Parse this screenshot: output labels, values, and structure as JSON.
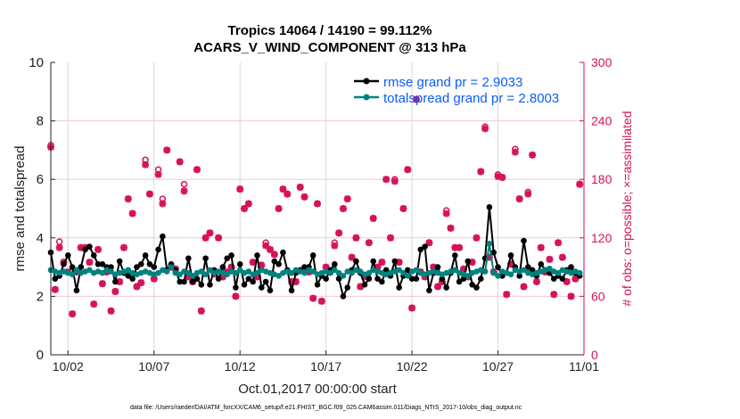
{
  "chart_data": {
    "type": "line",
    "title_line1": "Tropics 14064 / 14190 = 99.112%",
    "title_line2": "ACARS_V_WIND_COMPONENT @ 313 hPa",
    "ylabel": "rmse and totalspread",
    "y2label": "# of obs: o=possible; ×=assimilated",
    "xlabel": "Oct.01,2017 00:00:00 start",
    "footnote": "data file: /Users/raeder/DAI/ATM_forcXX/CAM6_setup/f.e21.FHIST_BGC.f09_025.CAM6assim.011/Diags_NTrS_2017-10/obs_diag_output.nc",
    "ylim": [
      0,
      10
    ],
    "y2lim": [
      0,
      300
    ],
    "xlim_days": [
      0,
      31
    ],
    "yticks": [
      "0",
      "2",
      "4",
      "6",
      "8",
      "10"
    ],
    "y2ticks": [
      "0",
      "60",
      "120",
      "180",
      "240",
      "300"
    ],
    "xticks": [
      {
        "day": 1,
        "label": "10/02"
      },
      {
        "day": 6,
        "label": "10/07"
      },
      {
        "day": 11,
        "label": "10/12"
      },
      {
        "day": 16,
        "label": "10/17"
      },
      {
        "day": 21,
        "label": "10/22"
      },
      {
        "day": 26,
        "label": "10/27"
      },
      {
        "day": 31,
        "label": "11/01"
      }
    ],
    "step_days": 0.25,
    "colors": {
      "rmse": "#000000",
      "spread": "#00827f",
      "obs": "#d6125a",
      "legend_text": "#0a5cff",
      "grid_v": "#d9d9d9",
      "grid_h": "#f0c8d6"
    },
    "series": [
      {
        "name": "rmse grand pr = 2.9033",
        "values": [
          3.5,
          2.6,
          2.7,
          3.1,
          3.4,
          3.0,
          2.2,
          3.0,
          3.6,
          3.7,
          3.4,
          3.1,
          3.1,
          3.0,
          3.0,
          2.5,
          3.2,
          2.8,
          2.7,
          2.6,
          3.0,
          3.1,
          3.4,
          3.1,
          3.0,
          3.6,
          4.05,
          2.9,
          3.1,
          2.9,
          2.5,
          2.5,
          3.3,
          2.5,
          2.6,
          2.4,
          3.3,
          2.4,
          2.9,
          2.6,
          3.0,
          3.3,
          3.4,
          2.3,
          3.1,
          2.4,
          2.6,
          2.5,
          3.4,
          2.3,
          2.5,
          2.2,
          3.2,
          3.1,
          3.5,
          2.9,
          2.2,
          2.8,
          2.9,
          3.0,
          3.0,
          3.4,
          2.4,
          2.7,
          2.6,
          2.9,
          3.1,
          2.6,
          2.0,
          2.3,
          2.9,
          3.2,
          2.8,
          2.4,
          2.6,
          3.2,
          2.6,
          2.5,
          2.9,
          2.7,
          3.2,
          2.3,
          2.7,
          2.9,
          2.6,
          2.6,
          3.6,
          3.7,
          2.2,
          2.8,
          3.0,
          2.6,
          2.3,
          2.8,
          3.4,
          2.5,
          2.6,
          3.2,
          2.4,
          2.3,
          2.6,
          3.3,
          5.05,
          3.5,
          3.0,
          2.7,
          2.8,
          3.4,
          3.0,
          2.7,
          3.9,
          3.0,
          2.9,
          2.7,
          3.1,
          2.9,
          2.8,
          2.6,
          2.7,
          2.6,
          2.9,
          3.0,
          2.8,
          2.7
        ]
      },
      {
        "name": "totalspread grand pr = 2.8003",
        "values": [
          2.9,
          2.85,
          2.8,
          2.85,
          2.8,
          2.75,
          2.9,
          2.8,
          2.85,
          2.9,
          2.8,
          2.85,
          2.8,
          2.9,
          2.85,
          2.75,
          2.8,
          2.85,
          2.9,
          2.8,
          2.75,
          2.8,
          2.85,
          2.8,
          2.75,
          2.8,
          2.9,
          2.85,
          3.0,
          2.8,
          2.75,
          2.85,
          2.8,
          2.7,
          2.8,
          2.85,
          2.75,
          2.9,
          2.8,
          2.85,
          2.8,
          2.75,
          2.85,
          2.8,
          2.9,
          2.8,
          2.85,
          2.75,
          2.8,
          2.9,
          2.85,
          2.8,
          2.75,
          2.7,
          2.8,
          2.85,
          2.8,
          2.9,
          2.85,
          2.8,
          2.9,
          2.85,
          2.75,
          2.8,
          2.85,
          2.8,
          2.9,
          2.8,
          2.7,
          2.85,
          2.8,
          2.9,
          2.85,
          2.75,
          2.8,
          2.9,
          2.85,
          2.8,
          2.75,
          2.8,
          2.85,
          2.9,
          2.8,
          2.7,
          2.85,
          2.9,
          2.8,
          2.75,
          2.8,
          2.85,
          2.8,
          2.75,
          2.8,
          2.85,
          2.9,
          2.8,
          2.75,
          2.7,
          2.8,
          2.85,
          2.9,
          2.85,
          3.8,
          2.8,
          2.7,
          2.85,
          2.8,
          2.75,
          2.9,
          2.85,
          2.9,
          2.8,
          2.75,
          2.8,
          2.85,
          2.9,
          2.95,
          2.85,
          2.8,
          2.9,
          2.85,
          2.8,
          2.85,
          2.8
        ]
      }
    ],
    "obs_possible": [
      215,
      67,
      116,
      95,
      85,
      42,
      85,
      110,
      110,
      95,
      52,
      108,
      73,
      85,
      45,
      65,
      75,
      110,
      160,
      145,
      70,
      74,
      200,
      165,
      78,
      190,
      160,
      210,
      90,
      88,
      198,
      175,
      80,
      75,
      190,
      45,
      120,
      125,
      83,
      120,
      80,
      85,
      90,
      60,
      170,
      150,
      155,
      95,
      80,
      92,
      115,
      108,
      103,
      150,
      170,
      165,
      75,
      75,
      172,
      162,
      85,
      58,
      155,
      55,
      90,
      85,
      115,
      125,
      150,
      160,
      100,
      120,
      70,
      80,
      115,
      140,
      90,
      95,
      180,
      120,
      180,
      95,
      150,
      190,
      48,
      262,
      85,
      80,
      115,
      90,
      70,
      75,
      148,
      130,
      110,
      110,
      88,
      80,
      95,
      120,
      188,
      234,
      100,
      85,
      185,
      182,
      62,
      93,
      211,
      160,
      70,
      167,
      205,
      75,
      110,
      85,
      98,
      62,
      115,
      100,
      75,
      60,
      78,
      175
    ],
    "obs_assimilated": [
      213,
      67,
      110,
      95,
      85,
      42,
      85,
      110,
      110,
      95,
      52,
      108,
      73,
      85,
      45,
      65,
      75,
      110,
      160,
      145,
      70,
      74,
      195,
      165,
      78,
      185,
      155,
      210,
      90,
      88,
      198,
      168,
      80,
      75,
      190,
      45,
      120,
      125,
      83,
      120,
      80,
      85,
      90,
      60,
      170,
      150,
      155,
      95,
      80,
      92,
      112,
      108,
      103,
      150,
      170,
      165,
      75,
      75,
      172,
      162,
      85,
      58,
      155,
      55,
      90,
      85,
      112,
      125,
      150,
      160,
      100,
      120,
      70,
      80,
      115,
      140,
      90,
      95,
      180,
      120,
      178,
      95,
      150,
      190,
      48,
      262,
      85,
      80,
      115,
      90,
      70,
      75,
      145,
      130,
      110,
      110,
      88,
      80,
      95,
      120,
      188,
      232,
      100,
      85,
      183,
      182,
      62,
      93,
      208,
      160,
      70,
      165,
      205,
      75,
      110,
      85,
      98,
      62,
      115,
      100,
      75,
      60,
      78,
      175
    ]
  }
}
